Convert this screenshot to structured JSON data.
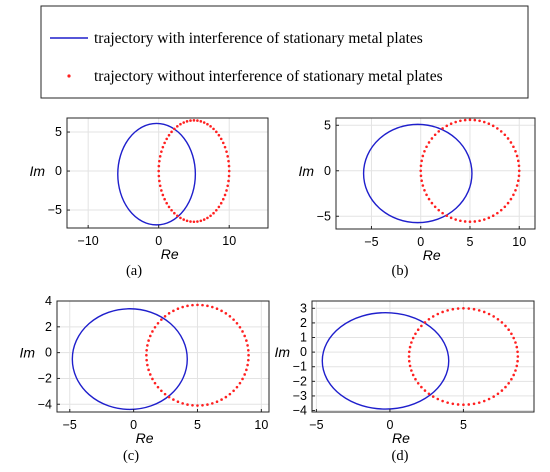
{
  "legend": {
    "placement": "top",
    "entries": [
      {
        "label": "trajectory with interference of stationary metal plates",
        "style": "solid line",
        "color": "#1f1fcc"
      },
      {
        "label": "trajectory without interference of stationary metal plates",
        "style": "dots",
        "color": "#ff2020"
      }
    ]
  },
  "chart_data": [
    {
      "type": "line",
      "caption": "(a)",
      "xlabel": "Re",
      "ylabel": "Im",
      "xlim": [
        -13,
        15.5
      ],
      "ylim": [
        -7.3,
        6.8
      ],
      "xticks": [
        -10,
        0,
        10
      ],
      "yticks": [
        -5,
        0,
        5
      ],
      "grid": true,
      "series": [
        {
          "name": "trajectory with interference of stationary metal plates",
          "color": "#1f1fcc",
          "style": "solid",
          "center": [
            -0.3,
            -0.4
          ],
          "radius_x": 5.5,
          "radius_y": 6.5
        },
        {
          "name": "trajectory without interference of stationary metal plates",
          "color": "#ff2020",
          "style": "dotted",
          "center": [
            5,
            0
          ],
          "radius_x": 5,
          "radius_y": 6.5
        }
      ]
    },
    {
      "type": "line",
      "caption": "(b)",
      "xlabel": "Re",
      "ylabel": "Im",
      "xlim": [
        -8.6,
        11.6
      ],
      "ylim": [
        -6.4,
        5.8
      ],
      "xticks": [
        -5,
        0,
        5,
        10
      ],
      "yticks": [
        -5,
        0,
        5
      ],
      "grid": true,
      "series": [
        {
          "name": "trajectory with interference of stationary metal plates",
          "color": "#1f1fcc",
          "style": "solid",
          "center": [
            -0.3,
            -0.3
          ],
          "radius_x": 5.5,
          "radius_y": 5.4
        },
        {
          "name": "trajectory without interference of stationary metal plates",
          "color": "#ff2020",
          "style": "dotted",
          "center": [
            5,
            0
          ],
          "radius_x": 5,
          "radius_y": 5.6
        }
      ]
    },
    {
      "type": "line",
      "caption": "(c)",
      "xlabel": "Re",
      "ylabel": "Im",
      "xlim": [
        -6,
        10.6
      ],
      "ylim": [
        -4.6,
        4
      ],
      "xticks": [
        -5,
        0,
        5,
        10
      ],
      "yticks": [
        -4,
        -2,
        0,
        2,
        4
      ],
      "grid": true,
      "series": [
        {
          "name": "trajectory with interference of stationary metal plates",
          "color": "#1f1fcc",
          "style": "solid",
          "center": [
            -0.3,
            -0.5
          ],
          "radius_x": 4.5,
          "radius_y": 3.9
        },
        {
          "name": "trajectory without interference of stationary metal plates",
          "color": "#ff2020",
          "style": "dotted",
          "center": [
            5,
            -0.2
          ],
          "radius_x": 4,
          "radius_y": 3.9
        }
      ]
    },
    {
      "type": "line",
      "caption": "(d)",
      "xlabel": "Re",
      "ylabel": "Im",
      "xlim": [
        -5.3,
        9.8
      ],
      "ylim": [
        -4.1,
        3.5
      ],
      "xticks": [
        -5,
        0,
        5
      ],
      "yticks": [
        -4,
        -3,
        -2,
        -1,
        0,
        1,
        2,
        3
      ],
      "grid": true,
      "series": [
        {
          "name": "trajectory with interference of stationary metal plates",
          "color": "#1f1fcc",
          "style": "solid",
          "center": [
            -0.3,
            -0.6
          ],
          "radius_x": 4.3,
          "radius_y": 3.3
        },
        {
          "name": "trajectory without interference of stationary metal plates",
          "color": "#ff2020",
          "style": "dotted",
          "center": [
            5,
            -0.3
          ],
          "radius_x": 3.7,
          "radius_y": 3.3
        }
      ]
    }
  ]
}
